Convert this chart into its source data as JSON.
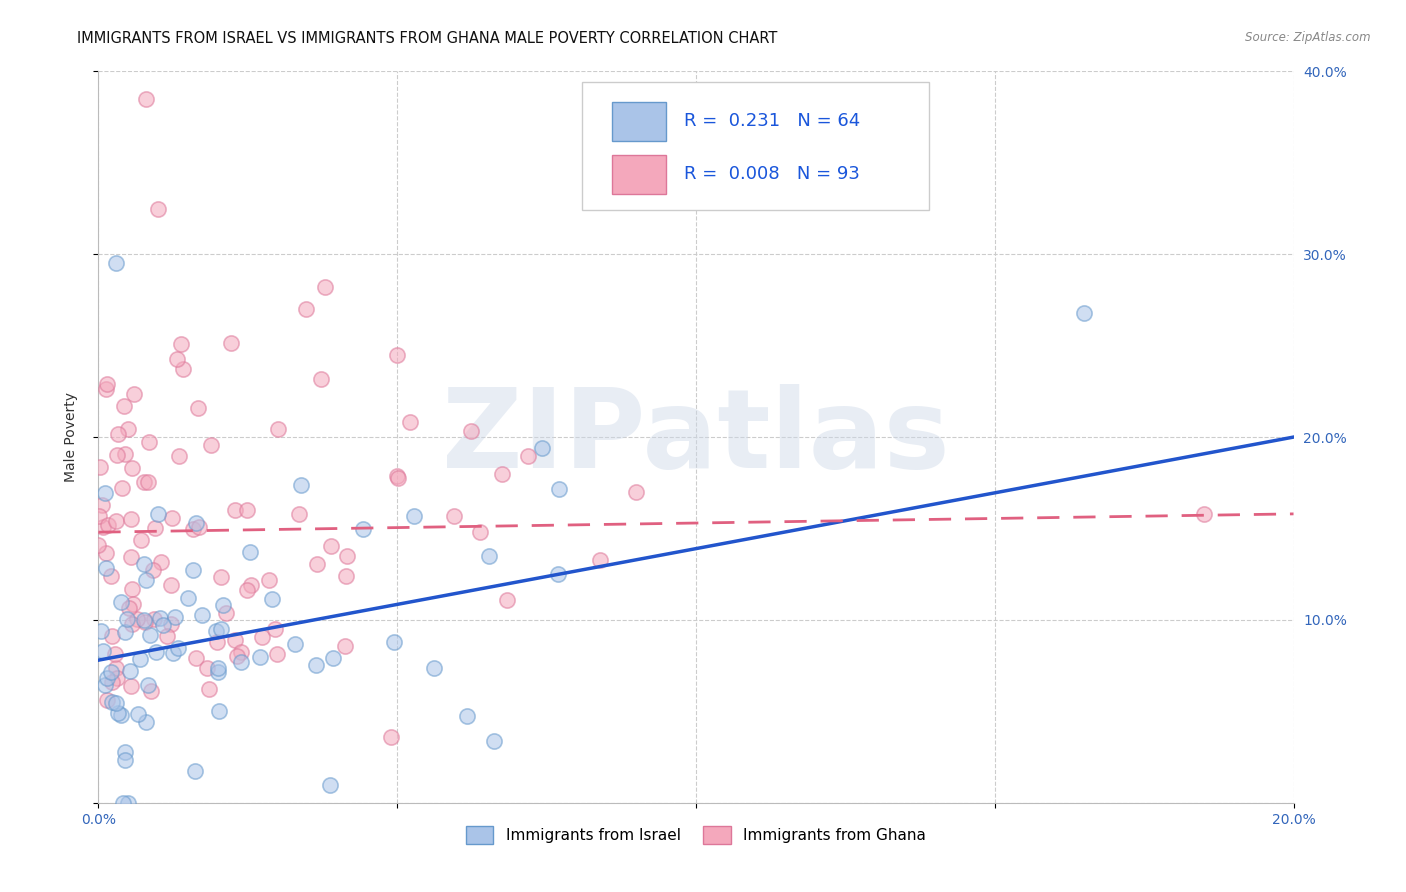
{
  "title": "IMMIGRANTS FROM ISRAEL VS IMMIGRANTS FROM GHANA MALE POVERTY CORRELATION CHART",
  "source": "Source: ZipAtlas.com",
  "ylabel": "Male Poverty",
  "xlim": [
    0.0,
    0.2
  ],
  "ylim": [
    0.0,
    0.4
  ],
  "xticks": [
    0.0,
    0.05,
    0.1,
    0.15,
    0.2
  ],
  "yticks": [
    0.0,
    0.1,
    0.2,
    0.3,
    0.4
  ],
  "xticklabels": [
    "0.0%",
    "",
    "",
    "",
    "20.0%"
  ],
  "yticklabels_right": [
    "",
    "10.0%",
    "20.0%",
    "30.0%",
    "40.0%"
  ],
  "israel_R": 0.231,
  "israel_N": 64,
  "ghana_R": 0.008,
  "ghana_N": 93,
  "israel_color": "#aac4e8",
  "ghana_color": "#f4a8bc",
  "israel_line_color": "#2255cc",
  "ghana_line_color": "#e06080",
  "israel_line_style": "-",
  "ghana_line_style": "--",
  "watermark": "ZIPatlas",
  "watermark_zip_color": "#c8d8ec",
  "watermark_atlas_color": "#b8c8dc",
  "israel_line_y0": 0.078,
  "israel_line_y1": 0.2,
  "ghana_line_y0": 0.148,
  "ghana_line_y1": 0.158,
  "title_fontsize": 10.5,
  "axis_label_fontsize": 10,
  "tick_fontsize": 10,
  "legend_fontsize": 13,
  "background_color": "#ffffff",
  "grid_color": "#cccccc",
  "scatter_size": 120,
  "scatter_alpha": 0.55,
  "scatter_lw": 1.2,
  "israel_edge": "#6699cc",
  "ghana_edge": "#dd7799"
}
